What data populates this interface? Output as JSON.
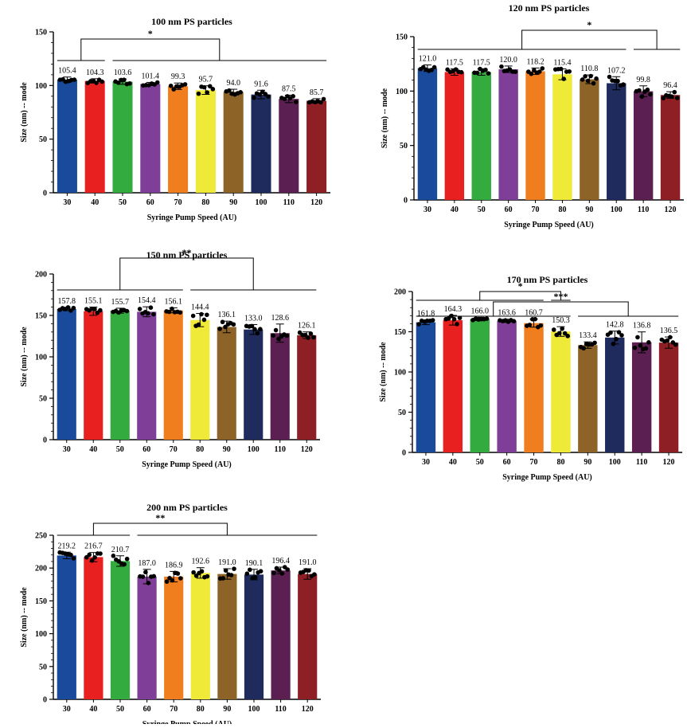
{
  "chart_data": [
    {
      "type": "bar",
      "title": "100 nm PS particles",
      "xlabel": "Syringe Pump Speed (AU)",
      "ylabel": "Size (nm) -- mode",
      "ylim": [
        0,
        150
      ],
      "yticks": [
        0,
        50,
        100,
        150
      ],
      "categories": [
        "30",
        "40",
        "50",
        "60",
        "70",
        "80",
        "90",
        "100",
        "110",
        "120"
      ],
      "values": [
        105.4,
        104.3,
        103.6,
        101.4,
        99.3,
        95.7,
        94.0,
        91.6,
        87.5,
        85.7
      ],
      "value_labels": [
        "105.4",
        "104.3",
        "103.6",
        "101.4",
        "99.3",
        "95.7",
        "94.0",
        "91.6",
        "87.5",
        "85.7"
      ],
      "errors": [
        2.5,
        2,
        2.5,
        1.5,
        3,
        4,
        2.5,
        4,
        3.5,
        2
      ],
      "significance": [
        {
          "label": "*",
          "groups_left": [
            0,
            1
          ],
          "groups_right": [
            2,
            9
          ]
        }
      ]
    },
    {
      "type": "bar",
      "title": "120 nm PS particles",
      "xlabel": "Syringe Pump Speed (AU)",
      "ylabel": "Size (nm) -- mode",
      "ylim": [
        0,
        150
      ],
      "yticks": [
        0,
        50,
        100,
        150
      ],
      "categories": [
        "30",
        "40",
        "50",
        "60",
        "70",
        "80",
        "90",
        "100",
        "110",
        "120"
      ],
      "values": [
        121.0,
        117.5,
        117.5,
        120.0,
        118.2,
        115.4,
        110.8,
        107.2,
        99.8,
        96.4
      ],
      "value_labels": [
        "121.0",
        "117.5",
        "117.5",
        "120.0",
        "118.2",
        "115.4",
        "110.8",
        "107.2",
        "99.8",
        "96.4"
      ],
      "errors": [
        3,
        3,
        3,
        3,
        3,
        5,
        4,
        6,
        5,
        3
      ],
      "significance": [
        {
          "label": "*",
          "groups_left": [
            0,
            7
          ],
          "groups_right": [
            8,
            9
          ]
        }
      ]
    },
    {
      "type": "bar",
      "title": "150 nm PS particles",
      "xlabel": "Syringe Pump Speed (AU)",
      "ylabel": "Size (nm) -- mode",
      "ylim": [
        0,
        200
      ],
      "yticks": [
        0,
        50,
        100,
        150,
        200
      ],
      "categories": [
        "30",
        "40",
        "50",
        "60",
        "70",
        "80",
        "90",
        "100",
        "110",
        "120"
      ],
      "values": [
        157.8,
        155.1,
        155.7,
        154.4,
        156.1,
        144.4,
        136.1,
        133.0,
        128.6,
        126.1
      ],
      "value_labels": [
        "157.8",
        "155.1",
        "155.7",
        "154.4",
        "156.1",
        "144.4",
        "136.1",
        "133.0",
        "128.6",
        "126.1"
      ],
      "errors": [
        2,
        5,
        3,
        6,
        3,
        8,
        7,
        6,
        11,
        4
      ],
      "significance": [
        {
          "label": "**",
          "groups_left": [
            0,
            4
          ],
          "groups_right": [
            5,
            9
          ]
        }
      ]
    },
    {
      "type": "bar",
      "title": "170 nm PS particles",
      "xlabel": "Syringe Pump Speed (AU)",
      "ylabel": "Size (nm) -- mode",
      "ylim": [
        0,
        200
      ],
      "yticks": [
        0,
        50,
        100,
        150,
        200
      ],
      "categories": [
        "30",
        "40",
        "50",
        "60",
        "70",
        "80",
        "90",
        "100",
        "110",
        "120"
      ],
      "values": [
        161.8,
        164.3,
        166.0,
        163.6,
        160.7,
        150.3,
        133.4,
        142.8,
        136.8,
        136.5
      ],
      "value_labels": [
        "161.8",
        "164.3",
        "166.0",
        "163.6",
        "160.7",
        "150.3",
        "133.4",
        "142.8",
        "136.8",
        "136.5"
      ],
      "errors": [
        3,
        6,
        2,
        2,
        5,
        6,
        4,
        8,
        13,
        7
      ],
      "significance": [
        {
          "label": "*",
          "groups_left": [
            0,
            4
          ],
          "groups_right": [
            5,
            5
          ]
        },
        {
          "label": "***",
          "groups_left": [
            0,
            5
          ],
          "groups_right": [
            6,
            9
          ]
        }
      ]
    },
    {
      "type": "bar",
      "title": "200 nm PS particles",
      "xlabel": "Syringe Pump Speed (AU)",
      "ylabel": "Size (nm) -- mode",
      "ylim": [
        0,
        250
      ],
      "yticks": [
        0,
        50,
        100,
        150,
        200,
        250
      ],
      "categories": [
        "30",
        "40",
        "50",
        "60",
        "70",
        "80",
        "90",
        "100",
        "110",
        "120"
      ],
      "values": [
        219.2,
        216.7,
        210.7,
        187.0,
        186.9,
        192.6,
        191.0,
        190.1,
        196.4,
        191.0
      ],
      "value_labels": [
        "219.2",
        "216.7",
        "210.7",
        "187.0",
        "186.9",
        "192.6",
        "191.0",
        "190.1",
        "196.4",
        "191.0"
      ],
      "errors": [
        5,
        7,
        8,
        11,
        8,
        8,
        8,
        8,
        5,
        8
      ],
      "significance": [
        {
          "label": "**",
          "groups_left": [
            0,
            2
          ],
          "groups_right": [
            3,
            9
          ]
        }
      ]
    }
  ],
  "colors": {
    "bars": [
      "#1a4a9c",
      "#e8201f",
      "#33ab3f",
      "#7f3f98",
      "#f07e1e",
      "#efe937",
      "#8e6327",
      "#1e2b5c",
      "#5b1f52",
      "#8e1f24"
    ],
    "axis": "#000000",
    "dots": "#000000"
  }
}
